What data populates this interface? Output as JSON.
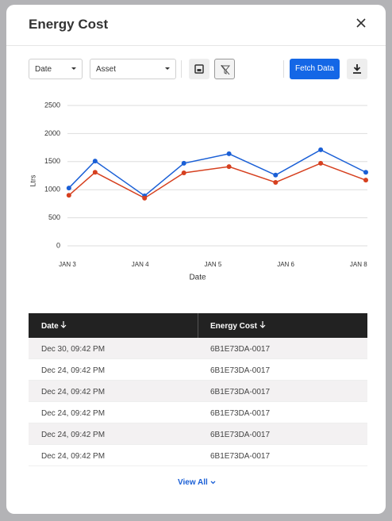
{
  "header": {
    "title": "Energy Cost"
  },
  "toolbar": {
    "date_select": "Date",
    "asset_select": "Asset",
    "fetch_button": "Fetch Data"
  },
  "chart_data": {
    "type": "line",
    "x_label": "Date",
    "y_label": "Ltrs",
    "x": [
      0.02,
      0.38,
      1.06,
      1.6,
      2.22,
      2.86,
      3.48,
      4.1
    ],
    "xlim": [
      0,
      4.1
    ],
    "xticks": [
      {
        "value": 0,
        "label": "JAN 3"
      },
      {
        "value": 1,
        "label": "JAN 4"
      },
      {
        "value": 2,
        "label": "JAN 5"
      },
      {
        "value": 3,
        "label": "JAN 6"
      },
      {
        "value": 4,
        "label": "JAN 8"
      }
    ],
    "ylim": [
      0,
      2500
    ],
    "yticks": [
      0,
      500,
      1000,
      1500,
      2000,
      2500
    ],
    "grid": true,
    "series": [
      {
        "color": "#1a5fd6",
        "values": [
          1030,
          1510,
          890,
          1470,
          1640,
          1260,
          1710,
          1310
        ]
      },
      {
        "color": "#d6401f",
        "values": [
          900,
          1310,
          850,
          1300,
          1410,
          1130,
          1470,
          1170
        ]
      }
    ]
  },
  "table": {
    "columns": [
      "Date",
      "Energy Cost"
    ],
    "rows": [
      [
        "Dec 30, 09:42 PM",
        "6B1E73DA-0017"
      ],
      [
        "Dec 24, 09:42 PM",
        "6B1E73DA-0017"
      ],
      [
        "Dec 24, 09:42 PM",
        "6B1E73DA-0017"
      ],
      [
        "Dec 24, 09:42 PM",
        "6B1E73DA-0017"
      ],
      [
        "Dec 24, 09:42 PM",
        "6B1E73DA-0017"
      ],
      [
        "Dec 24, 09:42 PM",
        "6B1E73DA-0017"
      ]
    ]
  },
  "footer": {
    "view_all": "View All"
  }
}
